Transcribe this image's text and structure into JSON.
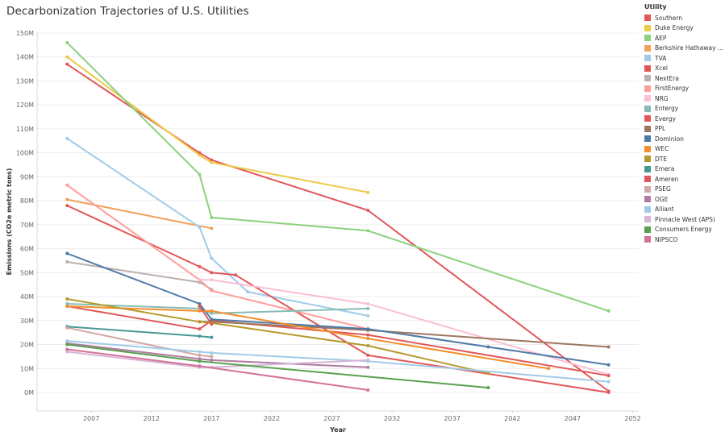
{
  "chart_data": {
    "type": "line",
    "title": "Decarbonization Trajectories of  U.S. Utilities",
    "xlabel": "Year",
    "ylabel": "Emissions (CO2e metric tons)",
    "xlim": [
      2002.5,
      2052.5
    ],
    "ylim": [
      0,
      150000000
    ],
    "x_ticks": [
      2007,
      2012,
      2017,
      2022,
      2027,
      2032,
      2037,
      2042,
      2047,
      2052
    ],
    "y_ticks": [
      0,
      10000000,
      20000000,
      30000000,
      40000000,
      50000000,
      60000000,
      70000000,
      80000000,
      90000000,
      100000000,
      110000000,
      120000000,
      130000000,
      140000000,
      150000000
    ],
    "y_tick_labels": [
      "0M",
      "10M",
      "20M",
      "30M",
      "40M",
      "50M",
      "60M",
      "70M",
      "80M",
      "90M",
      "100M",
      "110M",
      "120M",
      "130M",
      "140M",
      "150M"
    ],
    "grid": "horizontal",
    "legend_title": "Utility",
    "legend_position": "right",
    "series": [
      {
        "name": "Southern",
        "color": "#e15759",
        "points": [
          [
            2005,
            137000000
          ],
          [
            2016,
            100000000
          ],
          [
            2017,
            97000000
          ],
          [
            2030,
            76000000
          ],
          [
            2050,
            500000
          ]
        ]
      },
      {
        "name": "Duke Energy",
        "color": "#edc948",
        "points": [
          [
            2005,
            140000000
          ],
          [
            2016,
            99000000
          ],
          [
            2017,
            96000000
          ],
          [
            2030,
            83500000
          ]
        ]
      },
      {
        "name": "AEP",
        "color": "#8cd17d",
        "points": [
          [
            2005,
            146000000
          ],
          [
            2016,
            91000000
          ],
          [
            2017,
            73000000
          ],
          [
            2030,
            67500000
          ],
          [
            2050,
            34000000
          ]
        ]
      },
      {
        "name": "Berkshire Hathaway ...",
        "color": "#f1a15a",
        "points": [
          [
            2005,
            80500000
          ],
          [
            2017,
            68500000
          ]
        ]
      },
      {
        "name": "TVA",
        "color": "#a0cbe8",
        "points": [
          [
            2005,
            106000000
          ],
          [
            2016,
            69000000
          ],
          [
            2017,
            56000000
          ],
          [
            2020,
            42000000
          ],
          [
            2030,
            32000000
          ]
        ]
      },
      {
        "name": "Xcel",
        "color": "#e15759",
        "points": [
          [
            2005,
            78000000
          ],
          [
            2016,
            52500000
          ],
          [
            2017,
            50000000
          ],
          [
            2019,
            49000000
          ],
          [
            2030,
            15500000
          ],
          [
            2050,
            0
          ]
        ]
      },
      {
        "name": "NextEra",
        "color": "#bab0ac",
        "points": [
          [
            2005,
            54500000
          ],
          [
            2016,
            46000000
          ],
          [
            2017,
            43000000
          ]
        ]
      },
      {
        "name": "FirstEnergy",
        "color": "#ff9d9a",
        "points": [
          [
            2005,
            86500000
          ],
          [
            2016,
            47000000
          ],
          [
            2017,
            42500000
          ],
          [
            2030,
            26500000
          ]
        ]
      },
      {
        "name": "NRG",
        "color": "#fabfd2",
        "points": [
          [
            2016,
            47000000
          ],
          [
            2017,
            47000000
          ],
          [
            2030,
            37000000
          ],
          [
            2050,
            7500000
          ]
        ]
      },
      {
        "name": "Entergy",
        "color": "#86bcb6",
        "points": [
          [
            2005,
            37000000
          ],
          [
            2016,
            35000000
          ],
          [
            2017,
            33000000
          ],
          [
            2030,
            35000000
          ]
        ]
      },
      {
        "name": "Evergy",
        "color": "#e15759",
        "points": [
          [
            2005,
            36000000
          ],
          [
            2016,
            26500000
          ],
          [
            2017,
            30000000
          ],
          [
            2030,
            24000000
          ],
          [
            2050,
            7000000
          ]
        ]
      },
      {
        "name": "PPL",
        "color": "#9d7660",
        "points": [
          [
            2016,
            29500000
          ],
          [
            2017,
            29500000
          ],
          [
            2030,
            26000000
          ],
          [
            2050,
            19000000
          ]
        ]
      },
      {
        "name": "Dominion",
        "color": "#4e79a7",
        "points": [
          [
            2005,
            58000000
          ],
          [
            2016,
            37000000
          ],
          [
            2017,
            30500000
          ],
          [
            2030,
            26500000
          ],
          [
            2040,
            19000000
          ],
          [
            2050,
            11500000
          ]
        ]
      },
      {
        "name": "WEC",
        "color": "#f28e2b",
        "points": [
          [
            2005,
            36000000
          ],
          [
            2016,
            34000000
          ],
          [
            2017,
            34000000
          ],
          [
            2030,
            22500000
          ],
          [
            2045,
            10000000
          ]
        ]
      },
      {
        "name": "DTE",
        "color": "#b6992d",
        "points": [
          [
            2005,
            39000000
          ],
          [
            2016,
            29500000
          ],
          [
            2017,
            29000000
          ],
          [
            2030,
            19500000
          ],
          [
            2040,
            8000000
          ]
        ]
      },
      {
        "name": "Emera",
        "color": "#499894",
        "points": [
          [
            2005,
            27500000
          ],
          [
            2016,
            23500000
          ],
          [
            2017,
            23000000
          ]
        ]
      },
      {
        "name": "Ameren",
        "color": "#e15759",
        "points": [
          [
            2016,
            36000000
          ],
          [
            2017,
            28500000
          ]
        ]
      },
      {
        "name": "PSEG",
        "color": "#d4a6a5",
        "points": [
          [
            2005,
            27000000
          ],
          [
            2016,
            15500000
          ],
          [
            2017,
            15000000
          ]
        ]
      },
      {
        "name": "OGE",
        "color": "#b07aa1",
        "points": [
          [
            2005,
            20500000
          ],
          [
            2016,
            14000000
          ],
          [
            2017,
            13500000
          ],
          [
            2030,
            10500000
          ]
        ]
      },
      {
        "name": "Alliant",
        "color": "#a0cbe8",
        "points": [
          [
            2005,
            21500000
          ],
          [
            2016,
            17000000
          ],
          [
            2017,
            16500000
          ],
          [
            2030,
            13000000
          ],
          [
            2050,
            4500000
          ]
        ]
      },
      {
        "name": "Pinnacle West (APS)",
        "color": "#d7b5d8",
        "points": [
          [
            2005,
            17000000
          ],
          [
            2016,
            10500000
          ],
          [
            2017,
            10500000
          ],
          [
            2030,
            13500000
          ]
        ]
      },
      {
        "name": "Consumers Energy",
        "color": "#59a14f",
        "points": [
          [
            2005,
            20000000
          ],
          [
            2016,
            13000000
          ],
          [
            2040,
            2000000
          ]
        ]
      },
      {
        "name": "NIPSCO",
        "color": "#d37295",
        "points": [
          [
            2005,
            18000000
          ],
          [
            2016,
            11000000
          ],
          [
            2030,
            1000000
          ]
        ]
      }
    ]
  }
}
